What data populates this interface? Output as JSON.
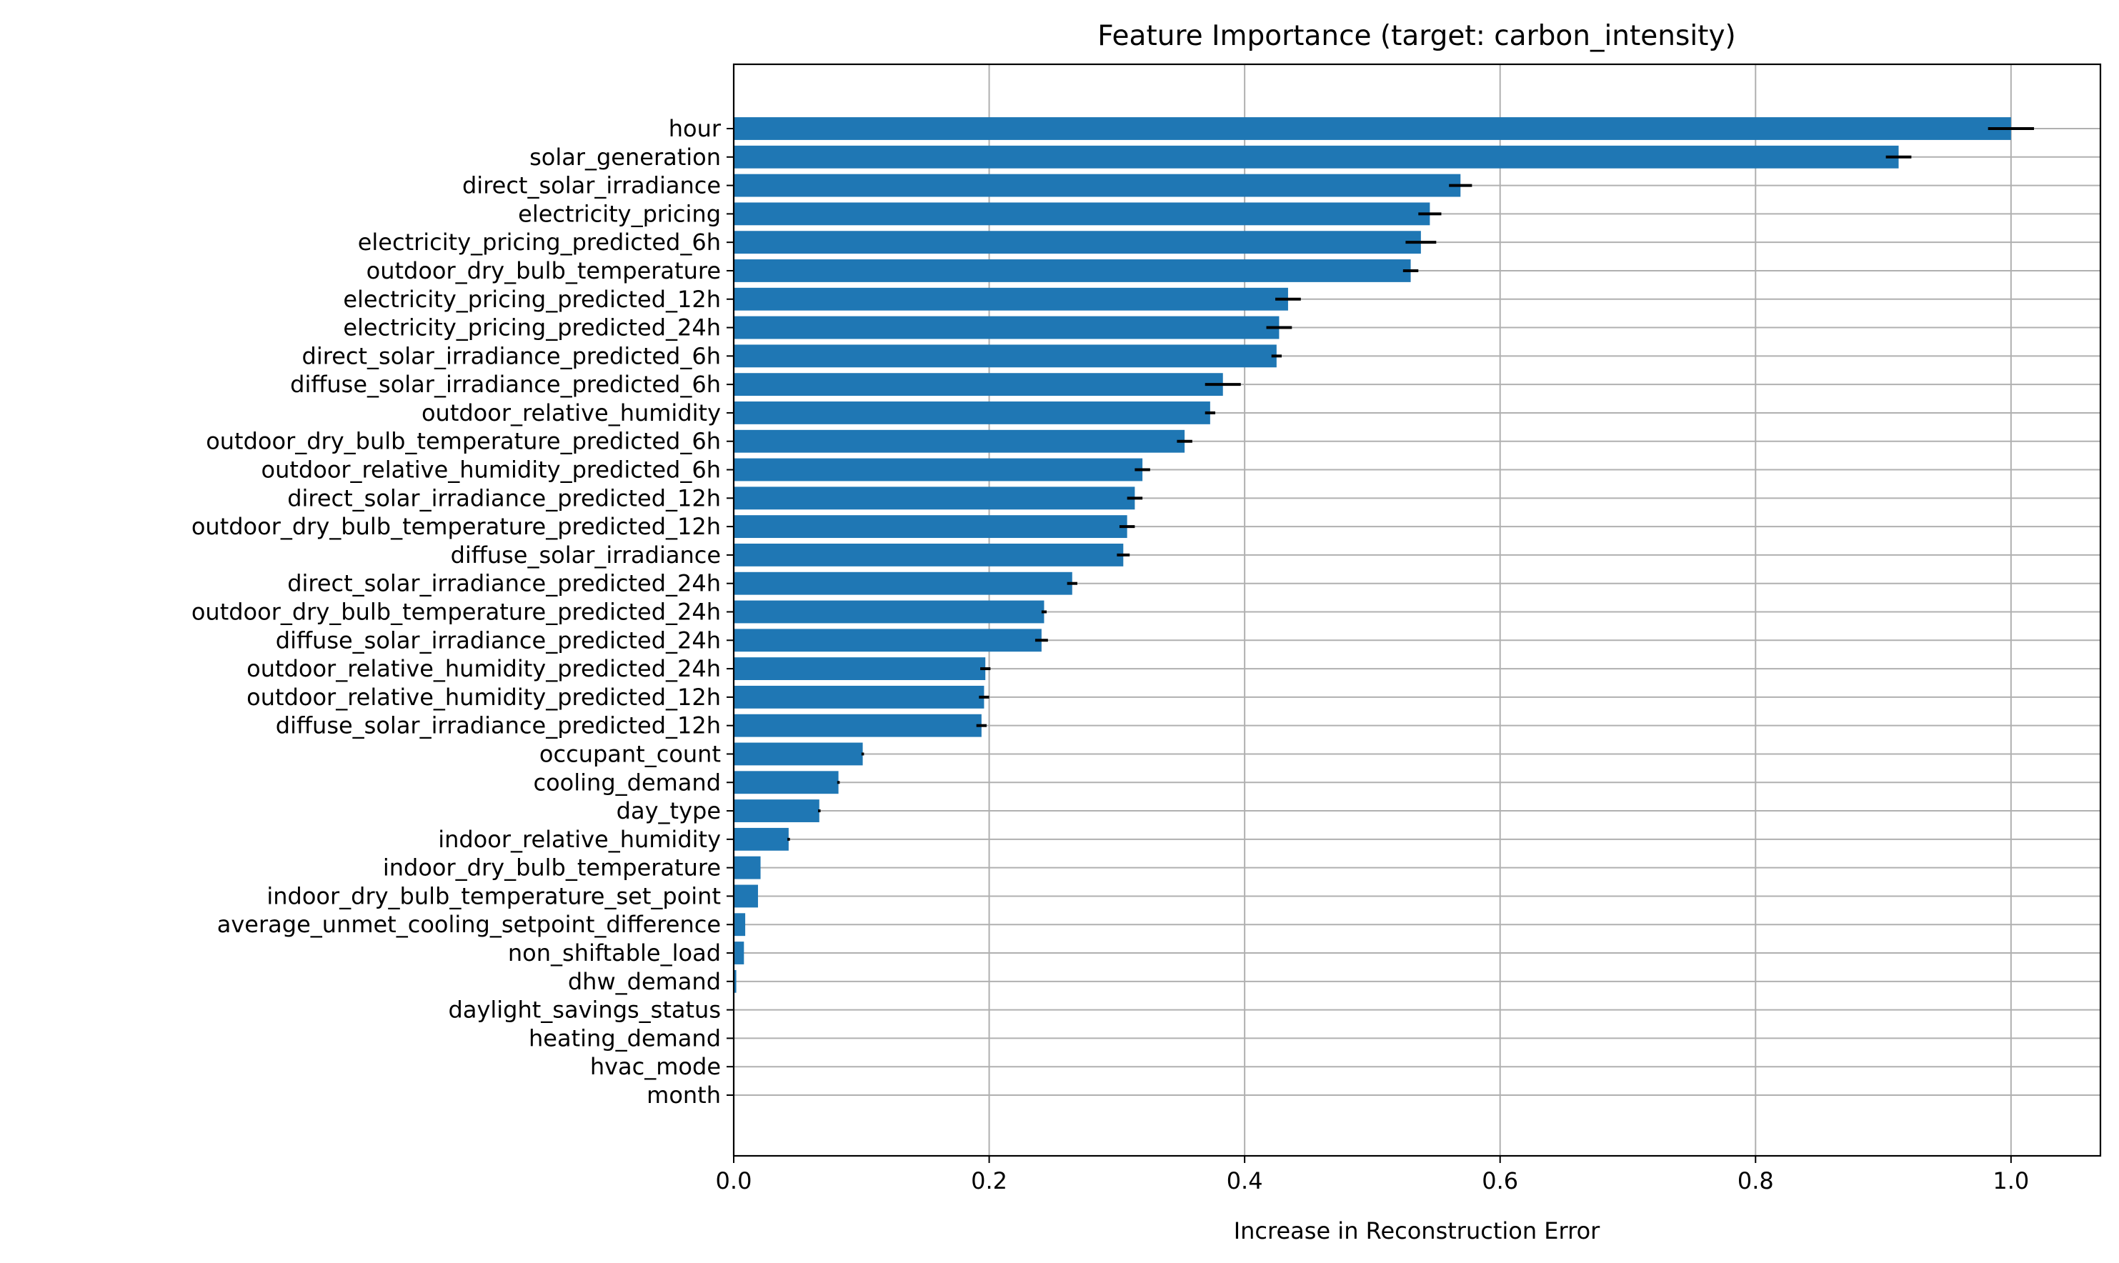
{
  "chart_data": {
    "type": "bar",
    "orientation": "horizontal",
    "title": "Feature Importance (target: carbon_intensity)",
    "xlabel": "Increase in Reconstruction Error",
    "ylabel": "",
    "xlim": [
      0,
      1.07
    ],
    "xticks": [
      0.0,
      0.2,
      0.4,
      0.6,
      0.8,
      1.0
    ],
    "xtick_labels": [
      "0.0",
      "0.2",
      "0.4",
      "0.6",
      "0.8",
      "1.0"
    ],
    "grid": true,
    "bar_color": "#1f77b4",
    "error_color": "#000000",
    "categories": [
      "hour",
      "solar_generation",
      "direct_solar_irradiance",
      "electricity_pricing",
      "electricity_pricing_predicted_6h",
      "outdoor_dry_bulb_temperature",
      "electricity_pricing_predicted_12h",
      "electricity_pricing_predicted_24h",
      "direct_solar_irradiance_predicted_6h",
      "diffuse_solar_irradiance_predicted_6h",
      "outdoor_relative_humidity",
      "outdoor_dry_bulb_temperature_predicted_6h",
      "outdoor_relative_humidity_predicted_6h",
      "direct_solar_irradiance_predicted_12h",
      "outdoor_dry_bulb_temperature_predicted_12h",
      "diffuse_solar_irradiance",
      "direct_solar_irradiance_predicted_24h",
      "outdoor_dry_bulb_temperature_predicted_24h",
      "diffuse_solar_irradiance_predicted_24h",
      "outdoor_relative_humidity_predicted_24h",
      "outdoor_relative_humidity_predicted_12h",
      "diffuse_solar_irradiance_predicted_12h",
      "occupant_count",
      "cooling_demand",
      "day_type",
      "indoor_relative_humidity",
      "indoor_dry_bulb_temperature",
      "indoor_dry_bulb_temperature_set_point",
      "average_unmet_cooling_setpoint_difference",
      "non_shiftable_load",
      "dhw_demand",
      "daylight_savings_status",
      "heating_demand",
      "hvac_mode",
      "month"
    ],
    "values": [
      1.0,
      0.912,
      0.569,
      0.545,
      0.538,
      0.53,
      0.434,
      0.427,
      0.425,
      0.383,
      0.373,
      0.353,
      0.32,
      0.314,
      0.308,
      0.305,
      0.265,
      0.243,
      0.241,
      0.197,
      0.196,
      0.194,
      0.101,
      0.082,
      0.067,
      0.043,
      0.021,
      0.019,
      0.009,
      0.008,
      0.002,
      0.0,
      0.0,
      0.0,
      0.0
    ],
    "errors": [
      0.018,
      0.01,
      0.009,
      0.009,
      0.012,
      0.006,
      0.01,
      0.01,
      0.004,
      0.014,
      0.004,
      0.006,
      0.006,
      0.006,
      0.006,
      0.005,
      0.004,
      0.002,
      0.005,
      0.004,
      0.004,
      0.004,
      0.001,
      0.001,
      0.001,
      0.001,
      0.0,
      0.0,
      0.0,
      0.0,
      0.0,
      0.0,
      0.0,
      0.0,
      0.0
    ]
  }
}
